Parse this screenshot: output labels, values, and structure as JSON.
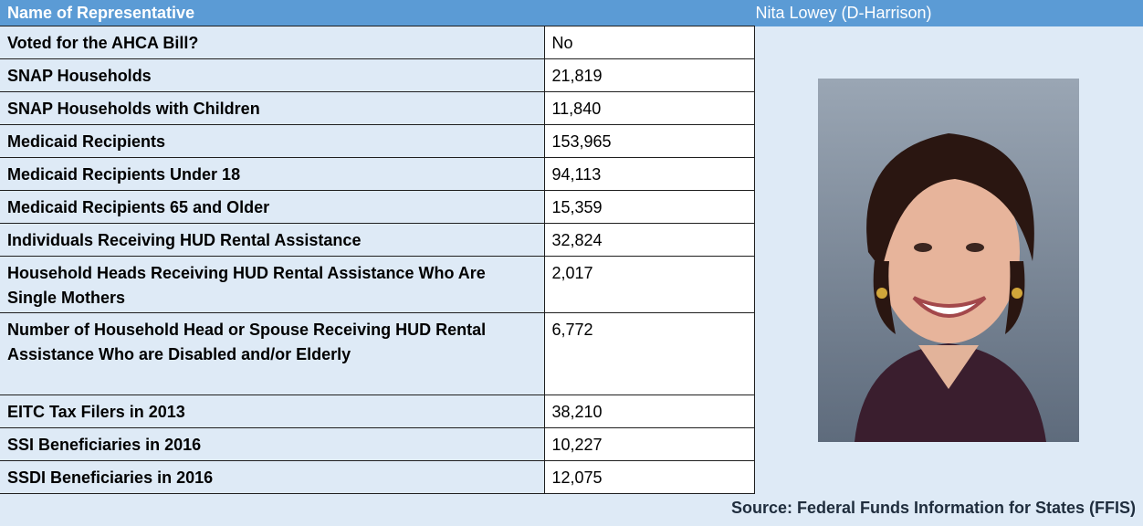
{
  "header": {
    "title": "Name of Representative",
    "name": "Nita Lowey (D-Harrison)"
  },
  "rows": [
    [
      "Voted for the AHCA Bill?",
      "No"
    ],
    [
      "SNAP Households",
      "21,819"
    ],
    [
      "SNAP Households with Children",
      "11,840"
    ],
    [
      "Medicaid Recipients",
      "153,965"
    ],
    [
      "Medicaid Recipients Under 18",
      "94,113"
    ],
    [
      "Medicaid Recipients 65 and Older",
      "15,359"
    ],
    [
      "Individuals Receiving HUD Rental Assistance",
      "32,824"
    ],
    [
      "Household Heads Receiving HUD Rental Assistance Who Are Single Mothers",
      "2,017"
    ],
    [
      "Number of Household Head or Spouse Receiving HUD Rental Assistance Who are Disabled and/or Elderly",
      "6,772"
    ],
    [
      "EITC Tax Filers in 2013",
      "38,210"
    ],
    [
      "SSI Beneficiaries in 2016",
      "10,227"
    ],
    [
      "SSDI Beneficiaries in 2016",
      "12,075"
    ]
  ],
  "source": "Source: Federal Funds Information for States (FFIS)"
}
